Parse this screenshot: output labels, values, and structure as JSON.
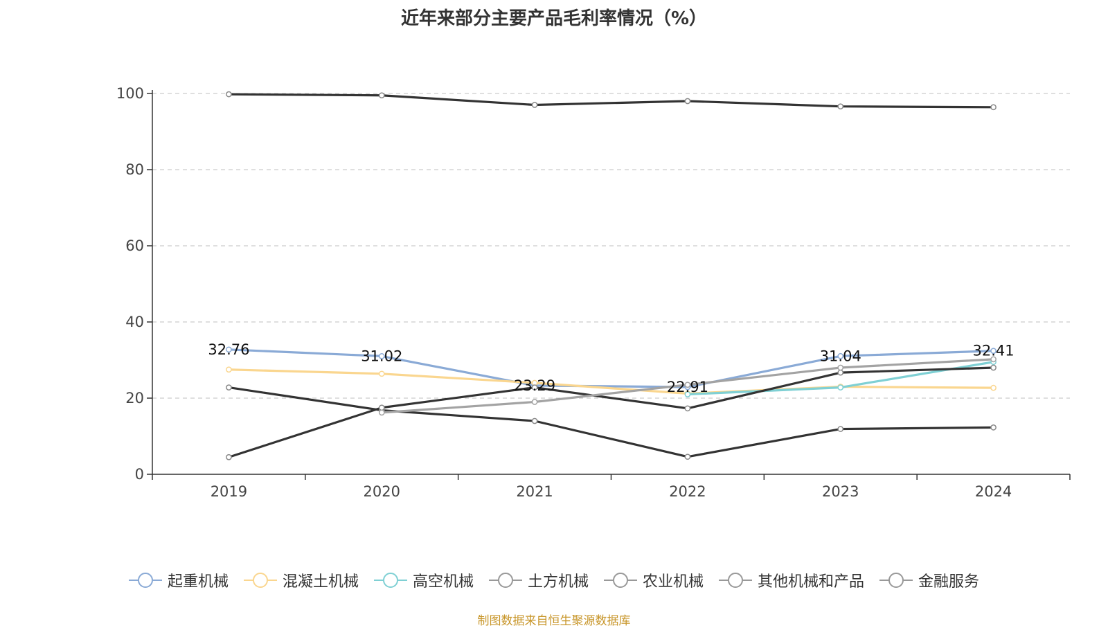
{
  "chart_data": {
    "type": "line",
    "title": "近年来部分主要产品毛利率情况（%）",
    "categories": [
      "2019",
      "2020",
      "2021",
      "2022",
      "2023",
      "2024"
    ],
    "ylim": [
      0,
      100
    ],
    "yticks": [
      0,
      20,
      40,
      60,
      80,
      100
    ],
    "grid": true,
    "legend_position": "bottom",
    "series": [
      {
        "name": "起重机械",
        "color": "#8aaad6",
        "values": [
          32.76,
          31.02,
          23.29,
          22.91,
          31.04,
          32.41
        ],
        "labels": [
          "32.76",
          "31.02",
          "23.29",
          "22.91",
          "31.04",
          "32.41"
        ]
      },
      {
        "name": "混凝土机械",
        "color": "#fad68f",
        "values": [
          27.5,
          26.4,
          24.0,
          21.2,
          23.0,
          22.7
        ]
      },
      {
        "name": "高空机械",
        "color": "#7fd0d4",
        "values": [
          null,
          null,
          null,
          21.0,
          22.8,
          29.5
        ]
      },
      {
        "name": "土方机械",
        "color": "#333333",
        "values": [
          22.8,
          16.8,
          14.0,
          4.6,
          11.9,
          12.3
        ]
      },
      {
        "name": "农业机械",
        "color": "#333333",
        "values": [
          4.5,
          17.5,
          22.8,
          17.3,
          26.7,
          28.0
        ]
      },
      {
        "name": "其他机械和产品",
        "color": "#a3a3a3",
        "values": [
          null,
          16.2,
          19.0,
          23.5,
          28.0,
          30.2
        ]
      },
      {
        "name": "金融服务",
        "color": "#333333",
        "values": [
          99.8,
          99.5,
          97.0,
          98.0,
          96.6,
          96.4
        ]
      }
    ]
  },
  "legend_marker_colors": [
    "#8aaad6",
    "#fad68f",
    "#7fd0d4",
    "#999999",
    "#999999",
    "#999999",
    "#999999"
  ],
  "source": "制图数据来自恒生聚源数据库"
}
